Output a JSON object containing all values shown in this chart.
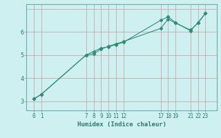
{
  "title": "",
  "xlabel": "Humidex (Indice chaleur)",
  "bg_color": "#cff0f0",
  "grid_color": "#c8a8a8",
  "line_color": "#2e8b7a",
  "line1_x": [
    0,
    1,
    7,
    8,
    9,
    10,
    11,
    12,
    17,
    18,
    19,
    21,
    22,
    23
  ],
  "line1_y": [
    3.1,
    3.3,
    5.0,
    5.15,
    5.3,
    5.35,
    5.45,
    5.55,
    6.5,
    6.65,
    6.4,
    6.05,
    6.4,
    6.8
  ],
  "line2_x": [
    0,
    1,
    7,
    8,
    9,
    10,
    11,
    12,
    17,
    18,
    19,
    21,
    22,
    23
  ],
  "line2_y": [
    3.1,
    3.3,
    5.0,
    5.05,
    5.25,
    5.38,
    5.48,
    5.58,
    6.15,
    6.55,
    6.38,
    6.08,
    6.38,
    6.8
  ],
  "xticks": [
    0,
    1,
    7,
    8,
    9,
    10,
    11,
    12,
    17,
    18,
    19,
    21,
    22,
    23
  ],
  "yticks": [
    3,
    4,
    5,
    6
  ],
  "xlim": [
    -1,
    24.5
  ],
  "ylim": [
    2.6,
    7.2
  ],
  "marker": "D",
  "markersize": 2.5,
  "grid_x": [
    0,
    1,
    7,
    8,
    9,
    10,
    11,
    12,
    17,
    18,
    19,
    21,
    22,
    23
  ],
  "grid_y": [
    3,
    4,
    5,
    6,
    7
  ]
}
